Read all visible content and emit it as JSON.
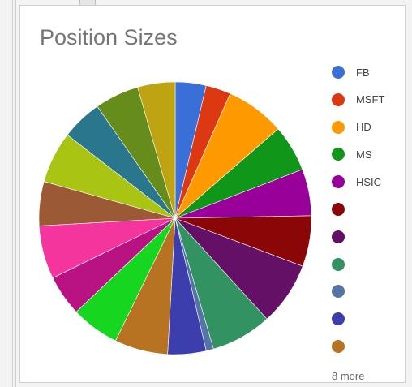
{
  "chart_data": {
    "type": "pie",
    "title": "Position Sizes",
    "legend_position": "right",
    "legend_more_text": "8 more",
    "slices": [
      {
        "label": "FB",
        "value": 3.7,
        "color": "#3a6fd8"
      },
      {
        "label": "MSFT",
        "value": 3.0,
        "color": "#dc3912"
      },
      {
        "label": "HD",
        "value": 7.1,
        "color": "#ff9900"
      },
      {
        "label": "MS",
        "value": 5.6,
        "color": "#109618"
      },
      {
        "label": "HSIC",
        "value": 5.6,
        "color": "#990099"
      },
      {
        "label": "",
        "value": 6.1,
        "color": "#8b0707"
      },
      {
        "label": "",
        "value": 7.6,
        "color": "#651067"
      },
      {
        "label": "",
        "value": 7.3,
        "color": "#329262"
      },
      {
        "label": "",
        "value": 0.9,
        "color": "#5574a6"
      },
      {
        "label": "",
        "value": 4.6,
        "color": "#3b3eac"
      },
      {
        "label": "",
        "value": 6.4,
        "color": "#b77322"
      },
      {
        "label": "",
        "value": 5.8,
        "color": "#16d620"
      },
      {
        "label": "",
        "value": 4.9,
        "color": "#b91383"
      },
      {
        "label": "",
        "value": 6.4,
        "color": "#f4359e"
      },
      {
        "label": "",
        "value": 5.3,
        "color": "#9c5935"
      },
      {
        "label": "",
        "value": 6.2,
        "color": "#a9c413"
      },
      {
        "label": "",
        "value": 4.9,
        "color": "#2a778d"
      },
      {
        "label": "",
        "value": 5.3,
        "color": "#668d1c"
      },
      {
        "label": "",
        "value": 4.5,
        "color": "#bea413"
      }
    ],
    "legend_visible_count": 11
  }
}
